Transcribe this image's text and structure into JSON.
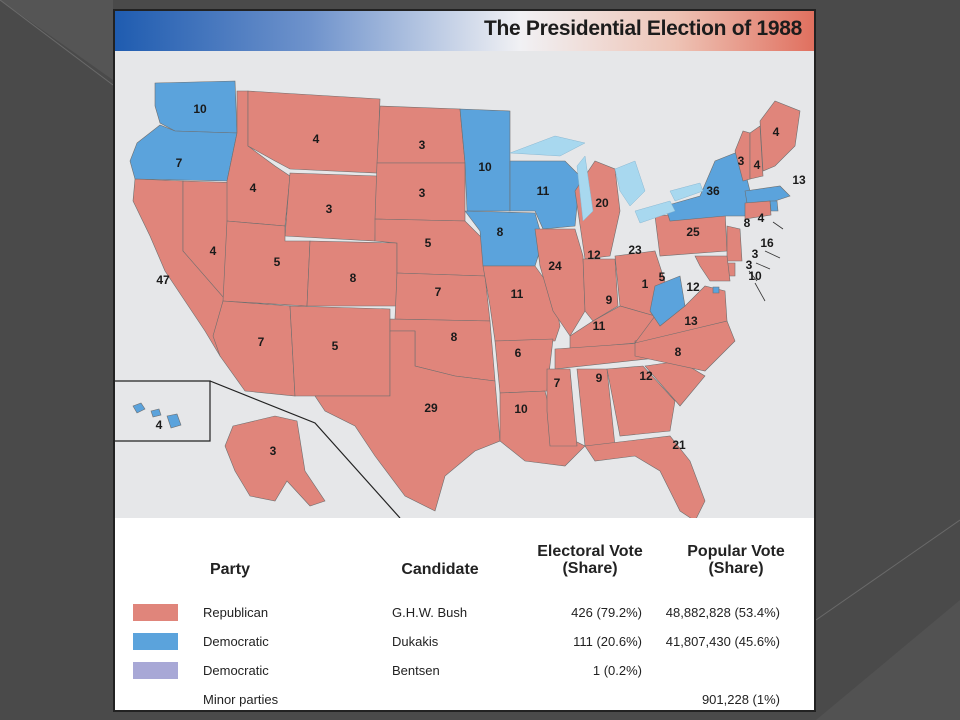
{
  "title": "The Presidential Election of 1988",
  "colors": {
    "republican": "#e0857b",
    "democratic": "#5ba3dc",
    "democratic_alt": "#a8a8d6",
    "lakes": "#a8d8ef",
    "map_background": "#e6e7e9"
  },
  "states": [
    {
      "state": "Washington",
      "ev": "10",
      "party": "democratic"
    },
    {
      "state": "Oregon",
      "ev": "7",
      "party": "democratic"
    },
    {
      "state": "California",
      "ev": "47",
      "party": "republican"
    },
    {
      "state": "Nevada",
      "ev": "4",
      "party": "republican"
    },
    {
      "state": "Idaho",
      "ev": "4",
      "party": "republican"
    },
    {
      "state": "Montana",
      "ev": "4",
      "party": "republican"
    },
    {
      "state": "Wyoming",
      "ev": "3",
      "party": "republican"
    },
    {
      "state": "Utah",
      "ev": "5",
      "party": "republican"
    },
    {
      "state": "Arizona",
      "ev": "7",
      "party": "republican"
    },
    {
      "state": "Colorado",
      "ev": "8",
      "party": "republican"
    },
    {
      "state": "New Mexico",
      "ev": "5",
      "party": "republican"
    },
    {
      "state": "North Dakota",
      "ev": "3",
      "party": "republican"
    },
    {
      "state": "South Dakota",
      "ev": "3",
      "party": "republican"
    },
    {
      "state": "Nebraska",
      "ev": "5",
      "party": "republican"
    },
    {
      "state": "Kansas",
      "ev": "7",
      "party": "republican"
    },
    {
      "state": "Oklahoma",
      "ev": "8",
      "party": "republican"
    },
    {
      "state": "Texas",
      "ev": "29",
      "party": "republican"
    },
    {
      "state": "Minnesota",
      "ev": "10",
      "party": "democratic"
    },
    {
      "state": "Iowa",
      "ev": "8",
      "party": "democratic"
    },
    {
      "state": "Missouri",
      "ev": "11",
      "party": "republican"
    },
    {
      "state": "Arkansas",
      "ev": "6",
      "party": "republican"
    },
    {
      "state": "Louisiana",
      "ev": "10",
      "party": "republican"
    },
    {
      "state": "Wisconsin",
      "ev": "11",
      "party": "democratic"
    },
    {
      "state": "Illinois",
      "ev": "24",
      "party": "republican"
    },
    {
      "state": "Michigan",
      "ev": "20",
      "party": "republican"
    },
    {
      "state": "Indiana",
      "ev": "12",
      "party": "republican"
    },
    {
      "state": "Ohio",
      "ev": "23",
      "party": "republican"
    },
    {
      "state": "Kentucky",
      "ev": "9",
      "party": "republican"
    },
    {
      "state": "Tennessee",
      "ev": "11",
      "party": "republican"
    },
    {
      "state": "Mississippi",
      "ev": "7",
      "party": "republican"
    },
    {
      "state": "Alabama",
      "ev": "9",
      "party": "republican"
    },
    {
      "state": "Georgia",
      "ev": "12",
      "party": "republican"
    },
    {
      "state": "Florida",
      "ev": "21",
      "party": "republican"
    },
    {
      "state": "South Carolina",
      "ev": "8",
      "party": "republican"
    },
    {
      "state": "North Carolina",
      "ev": "13",
      "party": "republican"
    },
    {
      "state": "Virginia",
      "ev": "12",
      "party": "republican"
    },
    {
      "state": "West Virginia",
      "ev": "5",
      "party": "democratic"
    },
    {
      "state": "West Virginia faithless",
      "ev": "1",
      "party": "democratic_alt"
    },
    {
      "state": "Pennsylvania",
      "ev": "25",
      "party": "republican"
    },
    {
      "state": "New York",
      "ev": "36",
      "party": "democratic"
    },
    {
      "state": "Vermont",
      "ev": "3",
      "party": "republican"
    },
    {
      "state": "New Hampshire",
      "ev": "4",
      "party": "republican"
    },
    {
      "state": "Maine",
      "ev": "4",
      "party": "republican"
    },
    {
      "state": "Massachusetts",
      "ev": "13",
      "party": "democratic"
    },
    {
      "state": "Rhode Island",
      "ev": "4",
      "party": "democratic"
    },
    {
      "state": "Connecticut",
      "ev": "8",
      "party": "republican"
    },
    {
      "state": "New Jersey",
      "ev": "16",
      "party": "republican"
    },
    {
      "state": "Delaware",
      "ev": "3",
      "party": "republican"
    },
    {
      "state": "Maryland",
      "ev": "10",
      "party": "republican"
    },
    {
      "state": "District of Columbia",
      "ev": "3",
      "party": "democratic"
    },
    {
      "state": "Hawaii",
      "ev": "4",
      "party": "democratic"
    },
    {
      "state": "Alaska",
      "ev": "3",
      "party": "republican"
    }
  ],
  "legend": {
    "headers": {
      "party": "Party",
      "candidate": "Candidate",
      "electoral_line1": "Electoral Vote",
      "electoral_line2": "(Share)",
      "popular_line1": "Popular Vote",
      "popular_line2": "(Share)"
    },
    "rows": [
      {
        "party": "Republican",
        "candidate": "G.H.W. Bush",
        "electoral": "426 (79.2%)",
        "popular": "48,882,828 (53.4%)",
        "color": "#e0857b"
      },
      {
        "party": "Democratic",
        "candidate": "Dukakis",
        "electoral": "111 (20.6%)",
        "popular": "41,807,430 (45.6%)",
        "color": "#5ba3dc"
      },
      {
        "party": "Democratic",
        "candidate": "Bentsen",
        "electoral": "1 (0.2%)",
        "popular": "",
        "color": "#a8a8d6"
      },
      {
        "party": "Minor parties",
        "candidate": "",
        "electoral": "",
        "popular": "901,228 (1%)",
        "color": ""
      }
    ]
  }
}
